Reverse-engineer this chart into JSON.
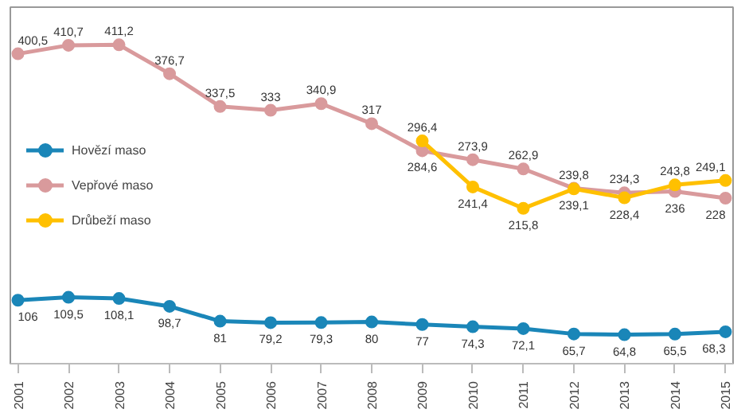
{
  "chart_data": {
    "type": "line",
    "categories": [
      "2001",
      "2002",
      "2003",
      "2004",
      "2005",
      "2006",
      "2007",
      "2008",
      "2009",
      "2010",
      "2011",
      "2012",
      "2013",
      "2014",
      "2015"
    ],
    "series": [
      {
        "name": "Hovězí maso",
        "color": "#1a86b8",
        "values": [
          106,
          109.5,
          108.1,
          98.7,
          81,
          79.2,
          79.3,
          80,
          77,
          74.3,
          72.1,
          65.7,
          64.8,
          65.5,
          68.3
        ],
        "value_labels": [
          "106",
          "109,5",
          "108,1",
          "98,7",
          "81",
          "79,2",
          "79,3",
          "80",
          "77",
          "74,3",
          "72,1",
          "65,7",
          "64,8",
          "65,5",
          "68,3"
        ]
      },
      {
        "name": "Vepřové maso",
        "color": "#d99a9c",
        "values": [
          400.5,
          410.7,
          411.2,
          376.7,
          337.5,
          333,
          340.9,
          317,
          284.6,
          273.9,
          262.9,
          239.8,
          234.3,
          236,
          228
        ],
        "value_labels": [
          "400,5",
          "410,7",
          "411,2",
          "376,7",
          "337,5",
          "333",
          "340,9",
          "317",
          "284,6",
          "273,9",
          "262,9",
          "239,8",
          "234,3",
          "236",
          "228"
        ]
      },
      {
        "name": "Drůbeží maso",
        "color": "#ffc000",
        "values": [
          null,
          null,
          null,
          null,
          null,
          null,
          null,
          null,
          296.4,
          241.4,
          215.8,
          239.1,
          228.4,
          243.8,
          249.1
        ],
        "value_labels": [
          null,
          null,
          null,
          null,
          null,
          null,
          null,
          null,
          "296,4",
          "241,4",
          "215,8",
          "239,1",
          "228,4",
          "243,8",
          "249,1"
        ]
      }
    ],
    "marker": "circle",
    "line_style": "solid",
    "grid": false,
    "legend": "left",
    "tick_labels": "x"
  }
}
